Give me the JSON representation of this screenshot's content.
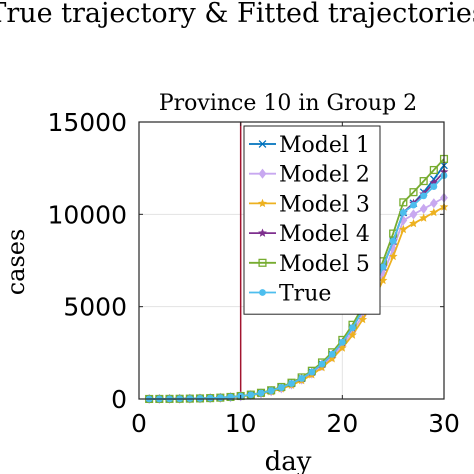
{
  "figure_title": "True trajectory & Fitted trajectories",
  "chart_data": {
    "type": "line",
    "title": "Province 10 in Group 2",
    "xlabel": "day",
    "ylabel": "cases",
    "xlim": [
      0,
      30
    ],
    "ylim": [
      0,
      15000
    ],
    "xticks": [
      0,
      10,
      20,
      30
    ],
    "xtick_labels": [
      "0",
      "10",
      "20",
      "30"
    ],
    "yticks": [
      0,
      5000,
      10000,
      15000
    ],
    "ytick_labels": [
      "0",
      "5000",
      "10000",
      "15000"
    ],
    "grid": true,
    "legend_position": "top-right",
    "vline": {
      "x": 10,
      "color": "#a2142f"
    },
    "x": [
      1,
      2,
      3,
      4,
      5,
      6,
      7,
      8,
      9,
      10,
      11,
      12,
      13,
      14,
      15,
      16,
      17,
      18,
      19,
      20,
      21,
      22,
      23,
      24,
      25,
      26,
      27,
      28,
      29,
      30
    ],
    "series": [
      {
        "name": "Model 1",
        "color": "#0072bd",
        "marker": "x",
        "values": [
          2,
          4,
          7,
          12,
          19,
          30,
          46,
          70,
          105,
          155,
          225,
          320,
          450,
          620,
          840,
          1115,
          1460,
          1890,
          2420,
          3070,
          3860,
          4800,
          5900,
          7150,
          8550,
          10100,
          10600,
          11200,
          11900,
          12650
        ]
      },
      {
        "name": "Model 2",
        "color": "#c8a8f0",
        "marker": "diamond",
        "values": [
          2,
          4,
          7,
          11,
          18,
          28,
          43,
          65,
          98,
          145,
          210,
          300,
          420,
          580,
          790,
          1050,
          1380,
          1790,
          2290,
          2900,
          3640,
          4520,
          5560,
          6760,
          8130,
          9670,
          10000,
          10300,
          10600,
          10900
        ]
      },
      {
        "name": "Model 3",
        "color": "#edb120",
        "marker": "star",
        "values": [
          2,
          3,
          6,
          10,
          16,
          26,
          40,
          61,
          92,
          136,
          198,
          283,
          397,
          550,
          750,
          1000,
          1310,
          1700,
          2180,
          2760,
          3460,
          4300,
          5280,
          6420,
          7720,
          9180,
          9500,
          9800,
          10100,
          10400
        ]
      },
      {
        "name": "Model 4",
        "color": "#7e2f8e",
        "marker": "star",
        "values": [
          2,
          4,
          7,
          12,
          19,
          30,
          46,
          70,
          105,
          155,
          225,
          320,
          450,
          620,
          840,
          1115,
          1460,
          1890,
          2420,
          3070,
          3860,
          4800,
          5900,
          7150,
          8550,
          10100,
          10600,
          11100,
          11700,
          12300
        ]
      },
      {
        "name": "Model 5",
        "color": "#77ac30",
        "marker": "square",
        "values": [
          2,
          4,
          7,
          12,
          20,
          31,
          48,
          73,
          110,
          163,
          237,
          337,
          473,
          652,
          883,
          1170,
          1530,
          1980,
          2530,
          3200,
          4020,
          5000,
          6140,
          7460,
          8960,
          10650,
          11200,
          11800,
          12400,
          13000
        ]
      },
      {
        "name": "True",
        "color": "#4dbeee",
        "marker": "circle",
        "values": [
          2,
          4,
          7,
          12,
          19,
          30,
          46,
          70,
          105,
          155,
          225,
          320,
          450,
          620,
          840,
          1115,
          1460,
          1890,
          2420,
          3070,
          3860,
          4800,
          5900,
          7150,
          8550,
          10100,
          10500,
          11000,
          11500,
          12100
        ]
      }
    ]
  }
}
